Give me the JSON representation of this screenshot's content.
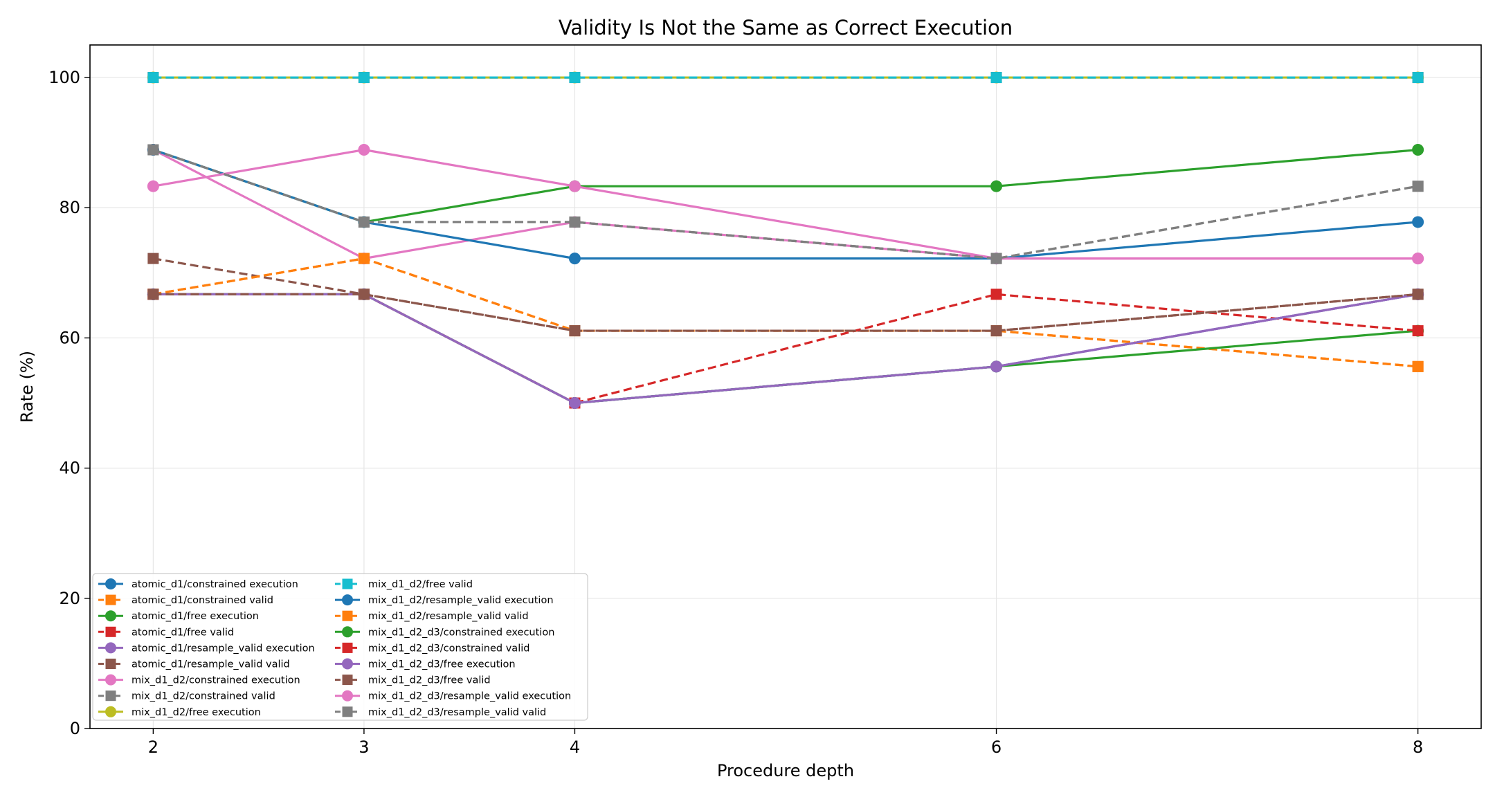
{
  "chart_data": {
    "type": "line",
    "title": "Validity Is Not the Same as Correct Execution",
    "xlabel": "Procedure depth",
    "ylabel": "Rate (%)",
    "x": [
      2,
      3,
      4,
      6,
      8
    ],
    "xlim": [
      1.7,
      8.3
    ],
    "ylim": [
      0,
      105
    ],
    "xticks": [
      2,
      3,
      4,
      6,
      8
    ],
    "yticks": [
      0,
      20,
      40,
      60,
      80,
      100
    ],
    "grid": true,
    "legend_position": "lower-left",
    "series": [
      {
        "name": "atomic_d1/constrained execution",
        "color": "#1f77b4",
        "marker": "circle",
        "dash": "solid",
        "values": [
          66.7,
          66.7,
          50.0,
          55.6,
          66.7
        ]
      },
      {
        "name": "atomic_d1/constrained valid",
        "color": "#ff7f0e",
        "marker": "square",
        "dash": "dashed",
        "values": [
          66.7,
          72.2,
          61.1,
          61.1,
          55.6
        ]
      },
      {
        "name": "atomic_d1/free execution",
        "color": "#2ca02c",
        "marker": "circle",
        "dash": "solid",
        "values": [
          88.9,
          77.8,
          83.3,
          83.3,
          88.9
        ]
      },
      {
        "name": "atomic_d1/free valid",
        "color": "#d62728",
        "marker": "square",
        "dash": "dashed",
        "values": [
          100,
          100,
          100,
          100,
          100
        ]
      },
      {
        "name": "atomic_d1/resample_valid execution",
        "color": "#9467bd",
        "marker": "circle",
        "dash": "solid",
        "values": [
          66.7,
          66.7,
          50.0,
          55.6,
          66.7
        ]
      },
      {
        "name": "atomic_d1/resample_valid valid",
        "color": "#8c564b",
        "marker": "square",
        "dash": "dashed",
        "values": [
          72.2,
          66.7,
          61.1,
          61.1,
          66.7
        ]
      },
      {
        "name": "mix_d1_d2/constrained execution",
        "color": "#e377c2",
        "marker": "circle",
        "dash": "solid",
        "values": [
          88.9,
          72.2,
          77.8,
          72.2,
          72.2
        ]
      },
      {
        "name": "mix_d1_d2/constrained valid",
        "color": "#7f7f7f",
        "marker": "square",
        "dash": "dashed",
        "values": [
          88.9,
          77.8,
          77.8,
          72.2,
          83.3
        ]
      },
      {
        "name": "mix_d1_d2/free execution",
        "color": "#bcbd22",
        "marker": "circle",
        "dash": "solid",
        "values": [
          100,
          100,
          100,
          100,
          100
        ]
      },
      {
        "name": "mix_d1_d2/free valid",
        "color": "#17becf",
        "marker": "square",
        "dash": "dashed",
        "values": [
          100,
          100,
          100,
          100,
          100
        ]
      },
      {
        "name": "mix_d1_d2/resample_valid execution",
        "color": "#1f77b4",
        "marker": "circle",
        "dash": "solid",
        "values": [
          88.9,
          77.8,
          72.2,
          72.2,
          77.8
        ]
      },
      {
        "name": "mix_d1_d2/resample_valid valid",
        "color": "#ff7f0e",
        "marker": "square",
        "dash": "dashed",
        "values": [
          66.7,
          72.2,
          61.1,
          61.1,
          55.6
        ]
      },
      {
        "name": "mix_d1_d2_d3/constrained execution",
        "color": "#2ca02c",
        "marker": "circle",
        "dash": "solid",
        "values": [
          66.7,
          66.7,
          50.0,
          55.6,
          61.1
        ]
      },
      {
        "name": "mix_d1_d2_d3/constrained valid",
        "color": "#d62728",
        "marker": "square",
        "dash": "dashed",
        "values": [
          66.7,
          66.7,
          50.0,
          66.7,
          61.1
        ]
      },
      {
        "name": "mix_d1_d2_d3/free execution",
        "color": "#9467bd",
        "marker": "circle",
        "dash": "solid",
        "values": [
          66.7,
          66.7,
          50.0,
          55.6,
          66.7
        ]
      },
      {
        "name": "mix_d1_d2_d3/free valid",
        "color": "#8c564b",
        "marker": "square",
        "dash": "dashed",
        "values": [
          66.7,
          66.7,
          61.1,
          61.1,
          66.7
        ]
      },
      {
        "name": "mix_d1_d2_d3/resample_valid execution",
        "color": "#e377c2",
        "marker": "circle",
        "dash": "solid",
        "values": [
          83.3,
          88.9,
          83.3,
          72.2,
          72.2
        ]
      },
      {
        "name": "mix_d1_d2_d3/resample_valid valid",
        "color": "#7f7f7f",
        "marker": "square",
        "dash": "dashed",
        "values": [
          88.9,
          77.8,
          77.8,
          72.2,
          83.3
        ]
      }
    ]
  }
}
